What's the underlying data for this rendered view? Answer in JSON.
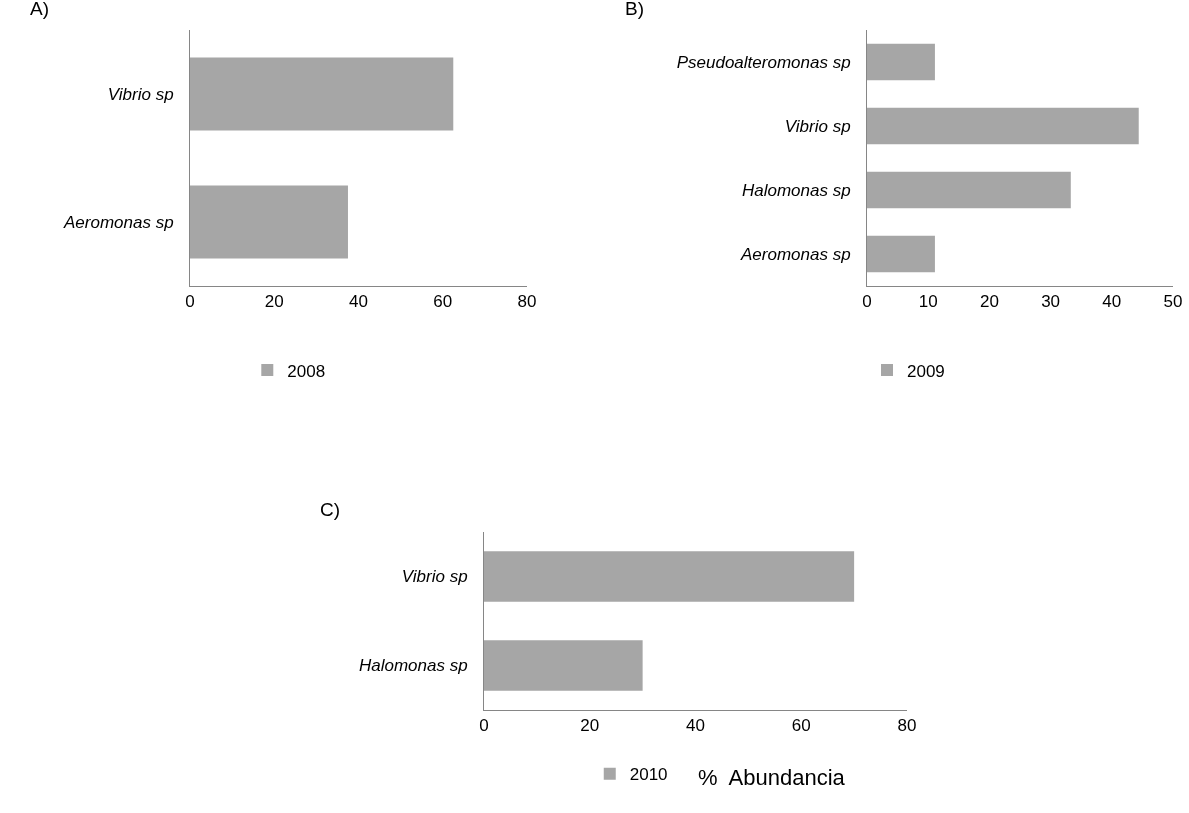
{
  "chart_data": [
    {
      "type": "bar",
      "orientation": "horizontal",
      "title": "A)",
      "categories": [
        "Vibrio sp",
        "Aeromonas sp"
      ],
      "series": [
        {
          "name": "2008",
          "color": "#a6a6a6",
          "values": [
            62.5,
            37.5
          ]
        }
      ],
      "xlim": [
        0,
        80
      ],
      "xticks": [
        0,
        20,
        40,
        60,
        80
      ],
      "grid": false,
      "legend": "bottom"
    },
    {
      "type": "bar",
      "orientation": "horizontal",
      "title": "B)",
      "categories": [
        "Pseudoalteromonas sp",
        "Vibrio sp",
        "Halomonas sp",
        "Aeromonas sp"
      ],
      "series": [
        {
          "name": "2009",
          "color": "#a6a6a6",
          "values": [
            11.1,
            44.4,
            33.3,
            11.1
          ]
        }
      ],
      "xlim": [
        0,
        50
      ],
      "xticks": [
        0,
        10,
        20,
        30,
        40,
        50
      ],
      "grid": false,
      "legend": "bottom"
    },
    {
      "type": "bar",
      "orientation": "horizontal",
      "title": "C)",
      "xlabel": "%  Abundancia",
      "categories": [
        "Vibrio sp",
        "Halomonas sp"
      ],
      "series": [
        {
          "name": "2010",
          "color": "#a6a6a6",
          "values": [
            70,
            30
          ]
        }
      ],
      "xlim": [
        0,
        80
      ],
      "xticks": [
        0,
        20,
        40,
        60,
        80
      ],
      "grid": false,
      "legend": "bottom"
    }
  ]
}
